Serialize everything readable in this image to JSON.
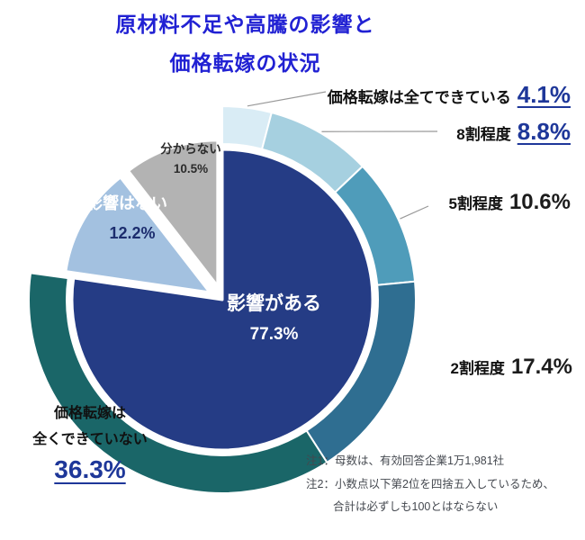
{
  "title": {
    "line1": "原材料不足や高騰の影響と",
    "line2": "価格転嫁の状況"
  },
  "chart_data": {
    "type": "pie",
    "title": "原材料不足や高騰の影響と価格転嫁の状況",
    "inner": [
      {
        "label": "影響がある",
        "value": 77.3,
        "color": "#253c85"
      },
      {
        "label": "影響はない",
        "value": 12.2,
        "color": "#a3c1e0"
      },
      {
        "label": "分からない",
        "value": 10.5,
        "color": "#b3b3b3"
      }
    ],
    "outer": [
      {
        "label": "価格転嫁は全てできている",
        "value": 4.1,
        "color": "#d9ecf5"
      },
      {
        "label": "8割程度",
        "value": 8.8,
        "color": "#a6d0e0"
      },
      {
        "label": "5割程度",
        "value": 10.6,
        "color": "#4f9cba"
      },
      {
        "label": "2割程度",
        "value": 17.4,
        "color": "#2f6e91"
      },
      {
        "label": "価格転嫁は全くできていない",
        "value": 36.3,
        "color": "#1a6668"
      }
    ],
    "annotations": [
      "注1：母数は、有効回答企業1万1,981社",
      "注2：小数点以下第2位を四捨五入しているため、合計は必ずしも100とはならない"
    ]
  },
  "labels": {
    "full": {
      "label": "価格転嫁は全てできている",
      "pct": "4.1%"
    },
    "eighty": {
      "label": "8割程度",
      "pct": "8.8%"
    },
    "fifty": {
      "label": "5割程度",
      "pct": "10.6%"
    },
    "twenty": {
      "label": "2割程度",
      "pct": "17.4%"
    },
    "none": {
      "line1": "価格転嫁は",
      "line2": "全くできていない",
      "pct": "36.3%"
    },
    "aru": {
      "label": "影響がある",
      "pct": "77.3%"
    },
    "nai": {
      "label": "影響はない",
      "pct": "12.2%"
    },
    "wakaranai": {
      "label": "分からない",
      "pct": "10.5%"
    }
  },
  "notes": {
    "note1": "注1：母数は、有効回答企業1万1,981社",
    "note2a": "注2：小数点以下第2位を四捨五入しているため、",
    "note2b": "合計は必ずしも100とはならない"
  },
  "colors": {
    "title_blue": "#2121d3",
    "percent_blue": "#1e3799",
    "percent_dark": "#1c1c1c",
    "label_dark": "#111111",
    "note_text": "#44484f"
  }
}
